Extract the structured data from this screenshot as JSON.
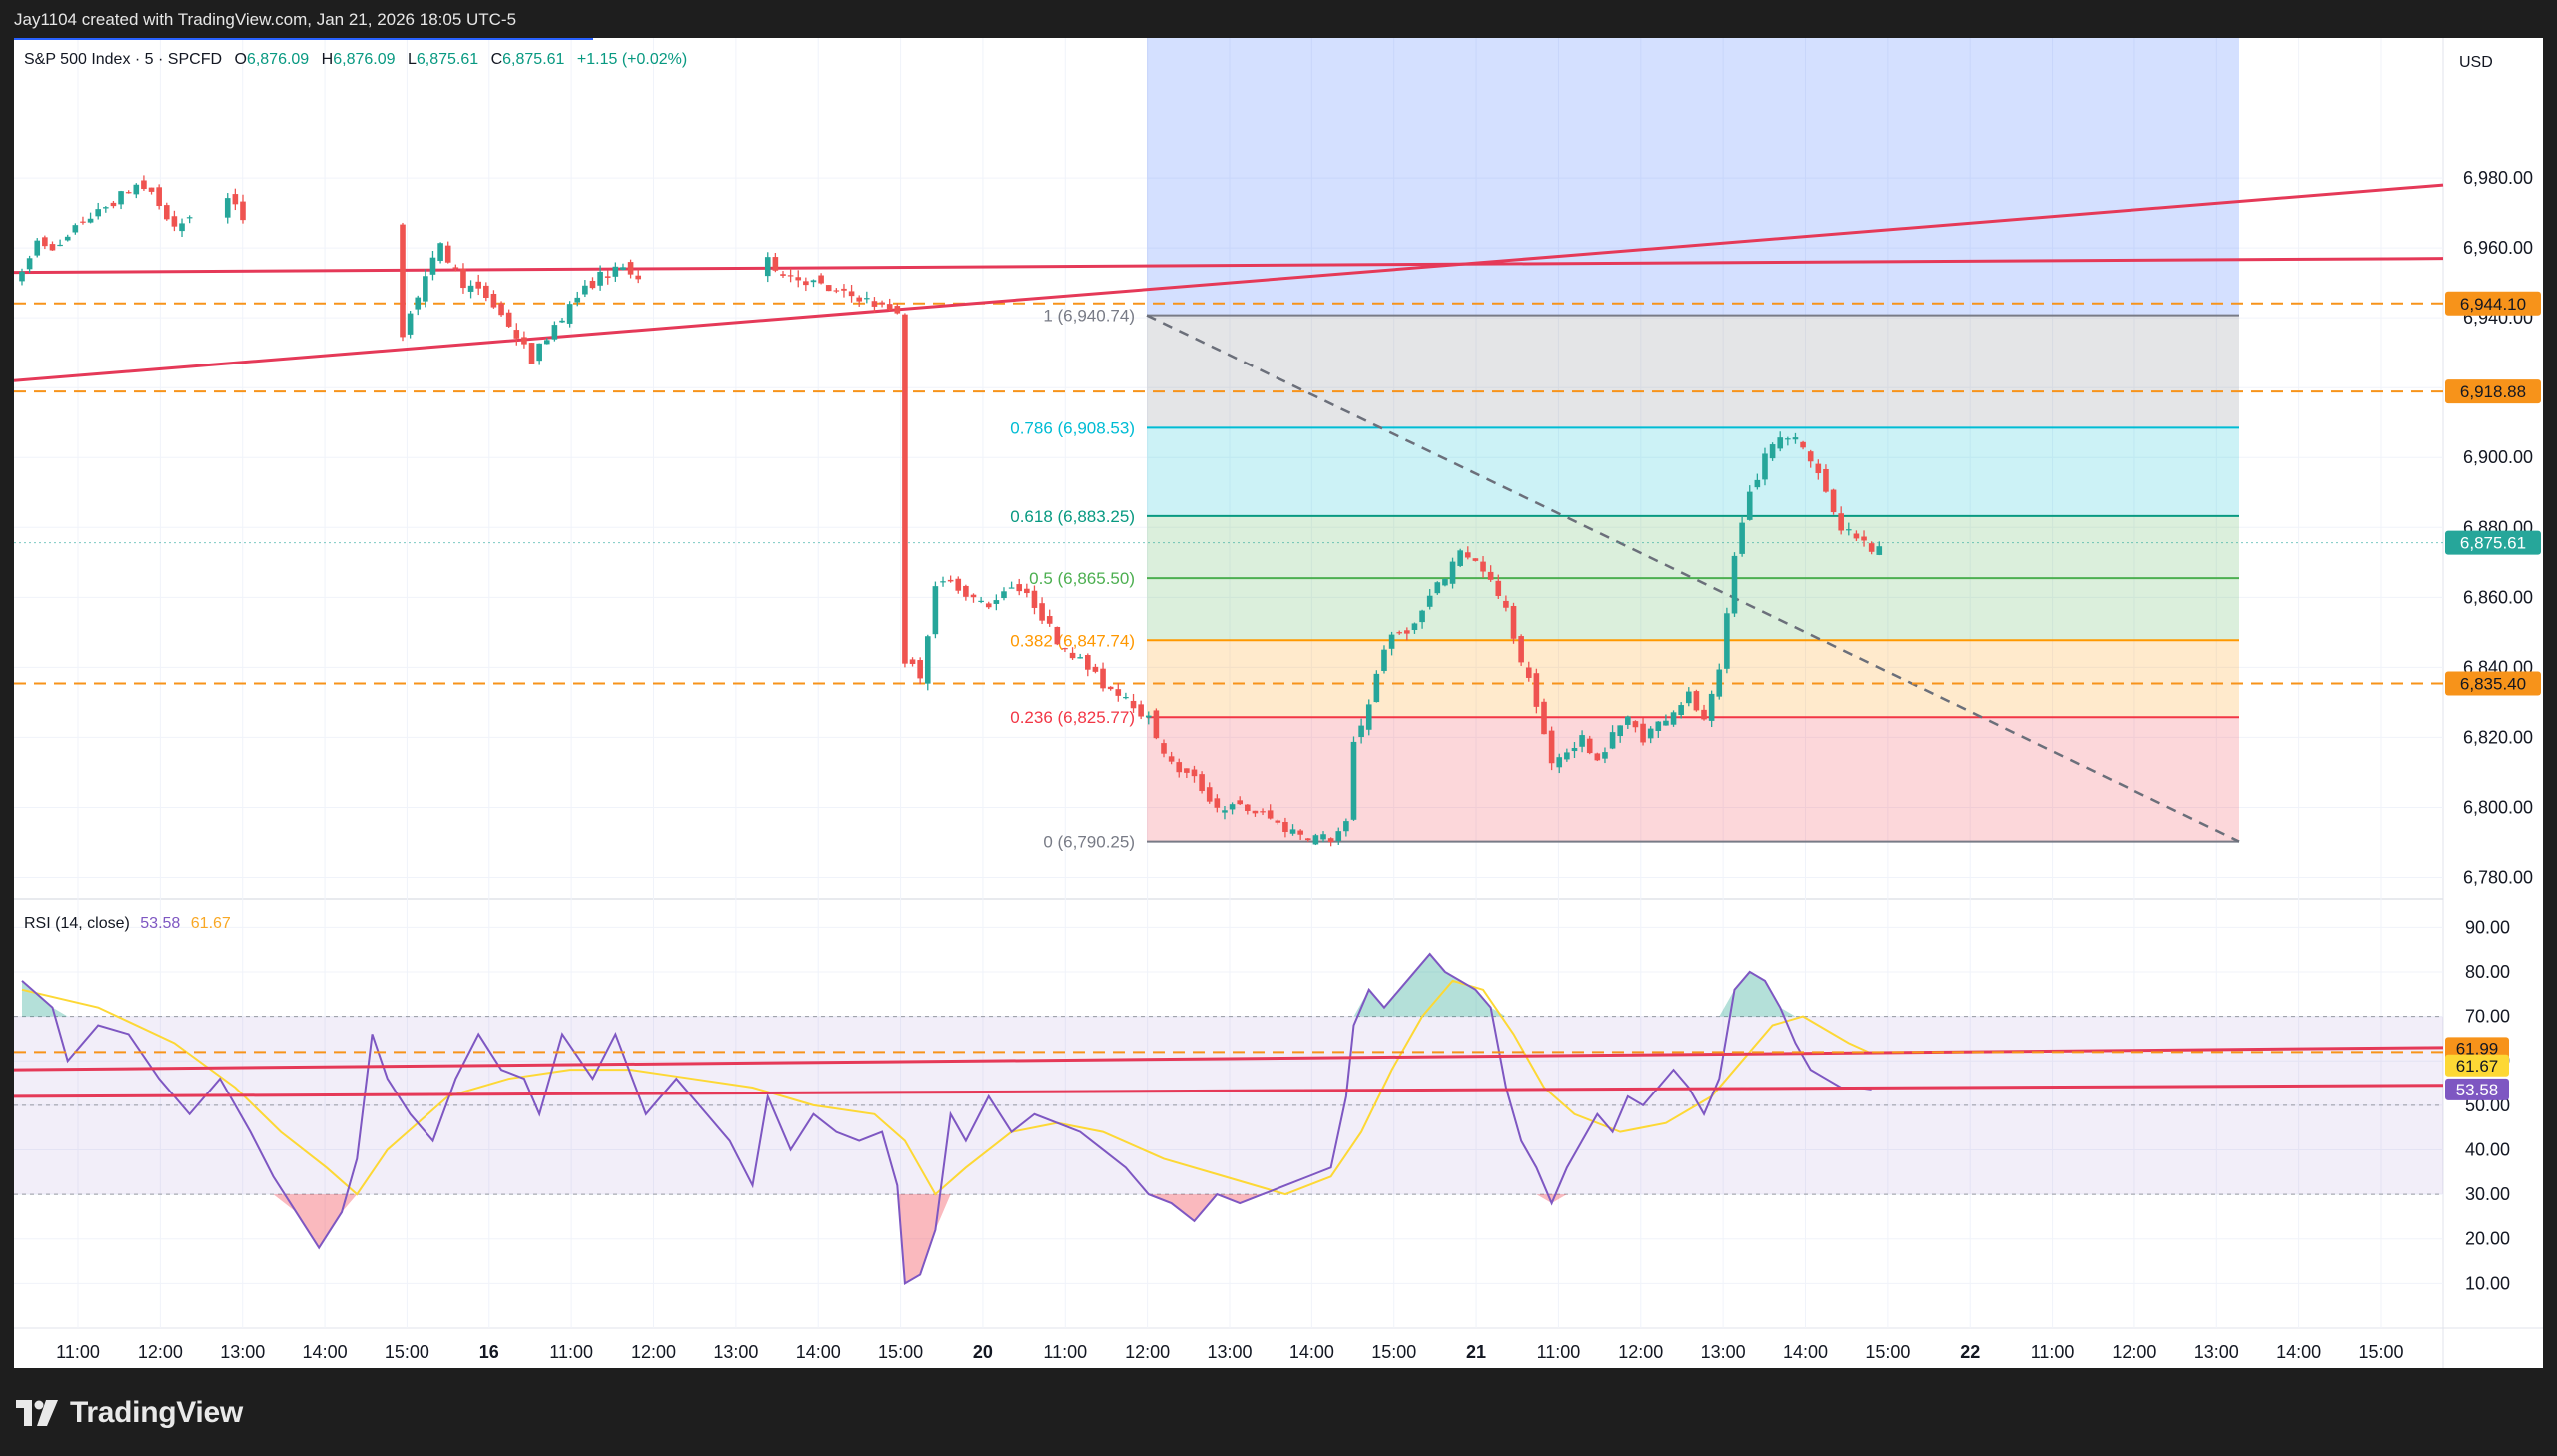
{
  "header": {
    "credit": "Jay1104 created with TradingView.com, Jan 21, 2026 18:05 UTC-5"
  },
  "brand": {
    "name": "TradingView"
  },
  "legend": {
    "symbol": "S&P 500 Index · 5 · SPCFD",
    "o_label": "O",
    "o_value": "6,876.09",
    "h_label": "H",
    "h_value": "6,876.09",
    "l_label": "L",
    "l_value": "6,875.61",
    "c_label": "C",
    "c_value": "6,875.61",
    "change": "+1.15 (+0.02%)"
  },
  "rsi_legend": {
    "label": "RSI (14, close)",
    "rsi_value": "53.58",
    "ma_value": "61.67"
  },
  "colors": {
    "up": "#26a69a",
    "down": "#ef5350",
    "trendline": "#e53958",
    "hline": "#f7931a",
    "rsi": "#7e57c2",
    "rsi_ma": "#fdd835",
    "fib_zone": "#2962ff"
  },
  "chart_data": [
    {
      "type": "candlestick",
      "title": "S&P 500 Index · 5 · SPCFD",
      "currency": "USD",
      "ylim": [
        6775,
        7020
      ],
      "y_ticks": [
        "6,780.00",
        "6,800.00",
        "6,820.00",
        "6,840.00",
        "6,860.00",
        "6,880.00",
        "6,900.00",
        "6,920.00",
        "6,940.00",
        "6,960.00",
        "6,980.00"
      ],
      "x_ticks": [
        "11:00",
        "12:00",
        "13:00",
        "14:00",
        "15:00",
        "16",
        "11:00",
        "12:00",
        "13:00",
        "14:00",
        "15:00",
        "20",
        "11:00",
        "12:00",
        "13:00",
        "14:00",
        "15:00",
        "21",
        "11:00",
        "12:00",
        "13:00",
        "14:00",
        "15:00",
        "22",
        "11:00",
        "12:00",
        "13:00",
        "14:00",
        "15:00"
      ],
      "price_path": [
        [
          0,
          6952
        ],
        [
          2,
          6962
        ],
        [
          5,
          6960
        ],
        [
          8,
          6968
        ],
        [
          10,
          6970
        ],
        [
          13,
          6975
        ],
        [
          15,
          6978
        ],
        [
          17,
          6976
        ],
        [
          20,
          6965
        ],
        [
          23,
          6972
        ],
        [
          27,
          6974
        ],
        [
          30,
          6966
        ],
        [
          34,
          6960
        ],
        [
          38,
          6950
        ],
        [
          42,
          6944
        ],
        [
          46,
          6940
        ],
        [
          50,
          6936
        ],
        [
          53,
          6952
        ],
        [
          55,
          6960
        ],
        [
          58,
          6950
        ],
        [
          61,
          6946
        ],
        [
          64,
          6938
        ],
        [
          67,
          6928
        ],
        [
          70,
          6938
        ],
        [
          73,
          6946
        ],
        [
          76,
          6952
        ],
        [
          79,
          6954
        ],
        [
          82,
          6950
        ],
        [
          86,
          6948
        ],
        [
          90,
          6946
        ],
        [
          94,
          6948
        ],
        [
          98,
          6956
        ],
        [
          101,
          6952
        ],
        [
          104,
          6950
        ],
        [
          107,
          6947
        ],
        [
          110,
          6946
        ],
        [
          113,
          6943
        ],
        [
          115,
          6942
        ],
        [
          116,
          6842
        ],
        [
          118,
          6838
        ],
        [
          120,
          6862
        ],
        [
          122,
          6866
        ],
        [
          124,
          6860
        ],
        [
          127,
          6858
        ],
        [
          130,
          6864
        ],
        [
          133,
          6858
        ],
        [
          136,
          6848
        ],
        [
          139,
          6842
        ],
        [
          142,
          6835
        ],
        [
          145,
          6832
        ],
        [
          148,
          6825
        ],
        [
          151,
          6812
        ],
        [
          154,
          6808
        ],
        [
          157,
          6800
        ],
        [
          160,
          6800
        ],
        [
          163,
          6798
        ],
        [
          166,
          6794
        ],
        [
          169,
          6792
        ],
        [
          172,
          6791
        ],
        [
          174,
          6795
        ],
        [
          175,
          6818
        ],
        [
          177,
          6830
        ],
        [
          179,
          6846
        ],
        [
          181,
          6850
        ],
        [
          183,
          6852
        ],
        [
          185,
          6860
        ],
        [
          187,
          6866
        ],
        [
          189,
          6874
        ],
        [
          191,
          6870
        ],
        [
          193,
          6864
        ],
        [
          195,
          6856
        ],
        [
          197,
          6842
        ],
        [
          199,
          6830
        ],
        [
          201,
          6812
        ],
        [
          203,
          6816
        ],
        [
          205,
          6820
        ],
        [
          207,
          6812
        ],
        [
          209,
          6822
        ],
        [
          211,
          6825
        ],
        [
          213,
          6820
        ],
        [
          215,
          6824
        ],
        [
          217,
          6828
        ],
        [
          219,
          6832
        ],
        [
          221,
          6824
        ],
        [
          223,
          6838
        ],
        [
          225,
          6872
        ],
        [
          227,
          6890
        ],
        [
          229,
          6900
        ],
        [
          231,
          6906
        ],
        [
          233,
          6906
        ],
        [
          235,
          6900
        ],
        [
          237,
          6890
        ],
        [
          239,
          6880
        ],
        [
          241,
          6878
        ],
        [
          243,
          6874
        ],
        [
          244,
          6876
        ]
      ],
      "horizontal_levels": [
        "6,944.10",
        "6,918.88",
        "6,835.40"
      ],
      "last_price": "6,875.61",
      "fib_retracement": [
        {
          "level": "1 (6,940.74)",
          "price": 6940.74
        },
        {
          "level": "0.786 (6,908.53)",
          "price": 6908.53
        },
        {
          "level": "0.618 (6,883.25)",
          "price": 6883.25
        },
        {
          "level": "0.5 (6,865.50)",
          "price": 6865.5
        },
        {
          "level": "0.382 (6,847.74)",
          "price": 6847.74
        },
        {
          "level": "0.236 (6,825.77)",
          "price": 6825.77
        },
        {
          "level": "0 (6,790.25)",
          "price": 6790.25
        }
      ],
      "grid": true
    },
    {
      "type": "line",
      "title": "RSI (14, close)",
      "ylim": [
        0,
        95
      ],
      "y_ticks": [
        "10.00",
        "20.00",
        "30.00",
        "40.00",
        "50.00",
        "60.00",
        "70.00",
        "80.00",
        "90.00"
      ],
      "bands": [
        30,
        50,
        70
      ],
      "rsi_path": [
        [
          0,
          78
        ],
        [
          4,
          72
        ],
        [
          6,
          60
        ],
        [
          10,
          68
        ],
        [
          14,
          66
        ],
        [
          18,
          56
        ],
        [
          22,
          48
        ],
        [
          26,
          56
        ],
        [
          30,
          44
        ],
        [
          33,
          34
        ],
        [
          36,
          26
        ],
        [
          39,
          18
        ],
        [
          42,
          26
        ],
        [
          44,
          38
        ],
        [
          46,
          66
        ],
        [
          48,
          56
        ],
        [
          51,
          48
        ],
        [
          54,
          42
        ],
        [
          57,
          56
        ],
        [
          60,
          66
        ],
        [
          63,
          58
        ],
        [
          66,
          56
        ],
        [
          68,
          48
        ],
        [
          71,
          66
        ],
        [
          75,
          56
        ],
        [
          78,
          66
        ],
        [
          82,
          48
        ],
        [
          86,
          56
        ],
        [
          90,
          48
        ],
        [
          93,
          42
        ],
        [
          96,
          32
        ],
        [
          98,
          52
        ],
        [
          101,
          40
        ],
        [
          104,
          48
        ],
        [
          107,
          44
        ],
        [
          110,
          42
        ],
        [
          113,
          44
        ],
        [
          115,
          32
        ],
        [
          116,
          10
        ],
        [
          118,
          12
        ],
        [
          120,
          22
        ],
        [
          122,
          48
        ],
        [
          124,
          42
        ],
        [
          127,
          52
        ],
        [
          130,
          44
        ],
        [
          133,
          48
        ],
        [
          136,
          46
        ],
        [
          139,
          44
        ],
        [
          142,
          40
        ],
        [
          145,
          36
        ],
        [
          148,
          30
        ],
        [
          151,
          28
        ],
        [
          154,
          24
        ],
        [
          157,
          30
        ],
        [
          160,
          28
        ],
        [
          163,
          30
        ],
        [
          166,
          32
        ],
        [
          169,
          34
        ],
        [
          172,
          36
        ],
        [
          174,
          52
        ],
        [
          175,
          68
        ],
        [
          177,
          76
        ],
        [
          179,
          72
        ],
        [
          181,
          76
        ],
        [
          183,
          80
        ],
        [
          185,
          84
        ],
        [
          187,
          80
        ],
        [
          189,
          78
        ],
        [
          191,
          76
        ],
        [
          193,
          72
        ],
        [
          195,
          54
        ],
        [
          197,
          42
        ],
        [
          199,
          36
        ],
        [
          201,
          28
        ],
        [
          203,
          36
        ],
        [
          205,
          42
        ],
        [
          207,
          48
        ],
        [
          209,
          44
        ],
        [
          211,
          52
        ],
        [
          213,
          50
        ],
        [
          215,
          54
        ],
        [
          217,
          58
        ],
        [
          219,
          54
        ],
        [
          221,
          48
        ],
        [
          223,
          56
        ],
        [
          225,
          76
        ],
        [
          227,
          80
        ],
        [
          229,
          78
        ],
        [
          231,
          72
        ],
        [
          233,
          64
        ],
        [
          235,
          58
        ],
        [
          237,
          56
        ],
        [
          239,
          54
        ],
        [
          241,
          54
        ],
        [
          243,
          53.58
        ]
      ],
      "ma_path": [
        [
          0,
          76
        ],
        [
          10,
          72
        ],
        [
          20,
          64
        ],
        [
          28,
          54
        ],
        [
          34,
          44
        ],
        [
          40,
          36
        ],
        [
          44,
          30
        ],
        [
          48,
          40
        ],
        [
          56,
          52
        ],
        [
          64,
          56
        ],
        [
          72,
          58
        ],
        [
          80,
          58
        ],
        [
          88,
          56
        ],
        [
          96,
          54
        ],
        [
          104,
          50
        ],
        [
          112,
          48
        ],
        [
          116,
          42
        ],
        [
          120,
          30
        ],
        [
          124,
          36
        ],
        [
          130,
          44
        ],
        [
          136,
          46
        ],
        [
          142,
          44
        ],
        [
          150,
          38
        ],
        [
          158,
          34
        ],
        [
          166,
          30
        ],
        [
          172,
          34
        ],
        [
          176,
          44
        ],
        [
          180,
          58
        ],
        [
          184,
          70
        ],
        [
          188,
          78
        ],
        [
          192,
          76
        ],
        [
          196,
          66
        ],
        [
          200,
          54
        ],
        [
          204,
          48
        ],
        [
          210,
          44
        ],
        [
          216,
          46
        ],
        [
          222,
          52
        ],
        [
          226,
          60
        ],
        [
          230,
          68
        ],
        [
          234,
          70
        ],
        [
          240,
          64
        ],
        [
          243,
          61.67
        ]
      ],
      "levels": [
        "61.99",
        "61.67",
        "53.58"
      ]
    }
  ]
}
